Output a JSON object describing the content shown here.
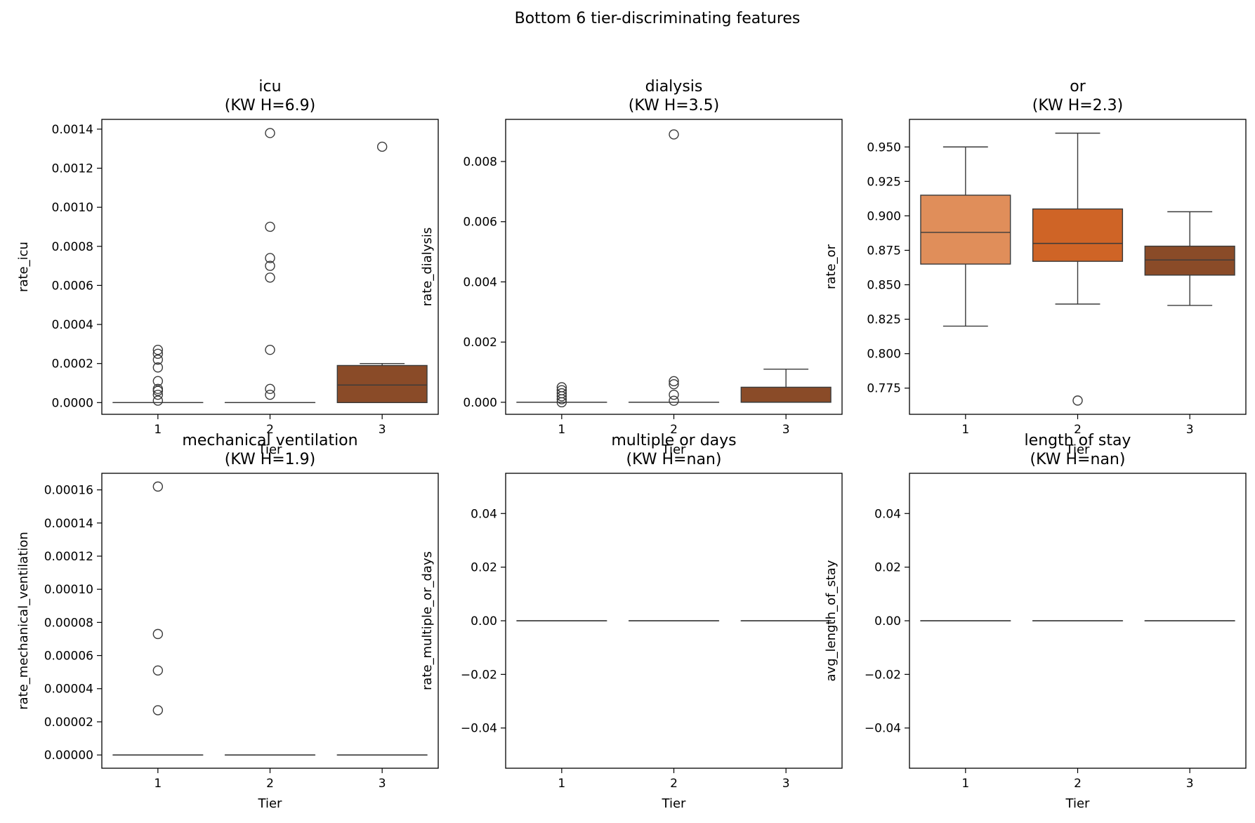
{
  "suptitle": "Bottom 6 tier-discriminating features",
  "colors": {
    "tier1": "#e08e5a",
    "tier2": "#cf6426",
    "tier3": "#8a4b28",
    "line": "#3a3a3a",
    "spine": "#000000"
  },
  "chart_data": [
    {
      "type": "box",
      "title": "icu",
      "subtitle": "(KW H=6.9)",
      "xlabel": "Tier",
      "ylabel": "rate_icu",
      "categories": [
        "1",
        "2",
        "3"
      ],
      "ylim": [
        -6e-05,
        0.00145
      ],
      "yticks": [
        0.0,
        0.0002,
        0.0004,
        0.0006,
        0.0008,
        0.001,
        0.0012,
        0.0014
      ],
      "ytick_labels": [
        "0.0000",
        "0.0002",
        "0.0004",
        "0.0006",
        "0.0008",
        "0.0010",
        "0.0012",
        "0.0014"
      ],
      "boxes": [
        {
          "tier": "1",
          "q1": 0,
          "median": 0,
          "q3": 0,
          "whislo": 0,
          "whishi": 0,
          "fliers": [
            1e-05,
            4e-05,
            6e-05,
            7e-05,
            0.00011,
            0.00018,
            0.00022,
            0.00025,
            0.00027
          ]
        },
        {
          "tier": "2",
          "q1": 0,
          "median": 0,
          "q3": 0,
          "whislo": 0,
          "whishi": 0,
          "fliers": [
            4e-05,
            7e-05,
            0.00027,
            0.00064,
            0.0007,
            0.00074,
            0.0009,
            0.00138
          ]
        },
        {
          "tier": "3",
          "q1": 0,
          "median": 9e-05,
          "q3": 0.00019,
          "whislo": 0,
          "whishi": 0.0002,
          "fliers": [
            0.00131
          ]
        }
      ]
    },
    {
      "type": "box",
      "title": "dialysis",
      "subtitle": "(KW H=3.5)",
      "xlabel": "Tier",
      "ylabel": "rate_dialysis",
      "categories": [
        "1",
        "2",
        "3"
      ],
      "ylim": [
        -0.0004,
        0.0094
      ],
      "yticks": [
        0.0,
        0.002,
        0.004,
        0.006,
        0.008
      ],
      "ytick_labels": [
        "0.000",
        "0.002",
        "0.004",
        "0.006",
        "0.008"
      ],
      "boxes": [
        {
          "tier": "1",
          "q1": 0,
          "median": 0,
          "q3": 0,
          "whislo": 0,
          "whishi": 0,
          "fliers": [
            0.0,
            0.0001,
            0.0002,
            0.0003,
            0.0004,
            0.0005
          ]
        },
        {
          "tier": "2",
          "q1": 0,
          "median": 0,
          "q3": 0,
          "whislo": 0,
          "whishi": 0,
          "fliers": [
            5e-05,
            0.00025,
            0.0006,
            0.0007,
            0.0089
          ]
        },
        {
          "tier": "3",
          "q1": 0,
          "median": 0,
          "q3": 0.0005,
          "whislo": 0,
          "whishi": 0.0011,
          "fliers": []
        }
      ]
    },
    {
      "type": "box",
      "title": "or",
      "subtitle": "(KW H=2.3)",
      "xlabel": "Tier",
      "ylabel": "rate_or",
      "categories": [
        "1",
        "2",
        "3"
      ],
      "ylim": [
        0.756,
        0.97
      ],
      "yticks": [
        0.775,
        0.8,
        0.825,
        0.85,
        0.875,
        0.9,
        0.925,
        0.95
      ],
      "ytick_labels": [
        "0.775",
        "0.800",
        "0.825",
        "0.850",
        "0.875",
        "0.900",
        "0.925",
        "0.950"
      ],
      "boxes": [
        {
          "tier": "1",
          "q1": 0.865,
          "median": 0.888,
          "q3": 0.915,
          "whislo": 0.82,
          "whishi": 0.95,
          "fliers": []
        },
        {
          "tier": "2",
          "q1": 0.867,
          "median": 0.88,
          "q3": 0.905,
          "whislo": 0.836,
          "whishi": 0.96,
          "fliers": [
            0.766
          ]
        },
        {
          "tier": "3",
          "q1": 0.857,
          "median": 0.868,
          "q3": 0.878,
          "whislo": 0.835,
          "whishi": 0.903,
          "fliers": []
        }
      ]
    },
    {
      "type": "box",
      "title": "mechanical ventilation",
      "subtitle": "(KW H=1.9)",
      "xlabel": "Tier",
      "ylabel": "rate_mechanical_ventilation",
      "categories": [
        "1",
        "2",
        "3"
      ],
      "ylim": [
        -8e-06,
        0.00017
      ],
      "yticks": [
        0.0,
        2e-05,
        4e-05,
        6e-05,
        8e-05,
        0.0001,
        0.00012,
        0.00014,
        0.00016
      ],
      "ytick_labels": [
        "0.00000",
        "0.00002",
        "0.00004",
        "0.00006",
        "0.00008",
        "0.00010",
        "0.00012",
        "0.00014",
        "0.00016"
      ],
      "boxes": [
        {
          "tier": "1",
          "q1": 0,
          "median": 0,
          "q3": 0,
          "whislo": 0,
          "whishi": 0,
          "fliers": [
            2.7e-05,
            5.1e-05,
            7.3e-05,
            0.000162
          ]
        },
        {
          "tier": "2",
          "q1": 0,
          "median": 0,
          "q3": 0,
          "whislo": 0,
          "whishi": 0,
          "fliers": []
        },
        {
          "tier": "3",
          "q1": 0,
          "median": 0,
          "q3": 0,
          "whislo": 0,
          "whishi": 0,
          "fliers": []
        }
      ]
    },
    {
      "type": "box",
      "title": "multiple or days",
      "subtitle": "(KW H=nan)",
      "xlabel": "Tier",
      "ylabel": "rate_multiple_or_days",
      "categories": [
        "1",
        "2",
        "3"
      ],
      "ylim": [
        -0.055,
        0.055
      ],
      "yticks": [
        -0.04,
        -0.02,
        0.0,
        0.02,
        0.04
      ],
      "ytick_labels": [
        "−0.04",
        "−0.02",
        "0.00",
        "0.02",
        "0.04"
      ],
      "boxes": [
        {
          "tier": "1",
          "q1": 0,
          "median": 0,
          "q3": 0,
          "whislo": 0,
          "whishi": 0,
          "fliers": []
        },
        {
          "tier": "2",
          "q1": 0,
          "median": 0,
          "q3": 0,
          "whislo": 0,
          "whishi": 0,
          "fliers": []
        },
        {
          "tier": "3",
          "q1": 0,
          "median": 0,
          "q3": 0,
          "whislo": 0,
          "whishi": 0,
          "fliers": []
        }
      ]
    },
    {
      "type": "box",
      "title": "length of stay",
      "subtitle": "(KW H=nan)",
      "xlabel": "Tier",
      "ylabel": "avg_length_of_stay",
      "categories": [
        "1",
        "2",
        "3"
      ],
      "ylim": [
        -0.055,
        0.055
      ],
      "yticks": [
        -0.04,
        -0.02,
        0.0,
        0.02,
        0.04
      ],
      "ytick_labels": [
        "−0.04",
        "−0.02",
        "0.00",
        "0.02",
        "0.04"
      ],
      "boxes": [
        {
          "tier": "1",
          "q1": 0,
          "median": 0,
          "q3": 0,
          "whislo": 0,
          "whishi": 0,
          "fliers": []
        },
        {
          "tier": "2",
          "q1": 0,
          "median": 0,
          "q3": 0,
          "whislo": 0,
          "whishi": 0,
          "fliers": []
        },
        {
          "tier": "3",
          "q1": 0,
          "median": 0,
          "q3": 0,
          "whislo": 0,
          "whishi": 0,
          "fliers": []
        }
      ]
    }
  ]
}
